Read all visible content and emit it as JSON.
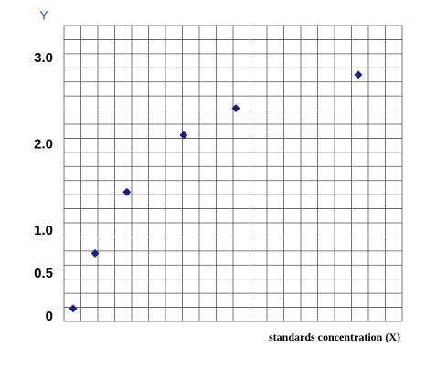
{
  "chart_data": {
    "type": "scatter",
    "title": "Y",
    "x_label": "standards concentration (X)",
    "x": [
      0.27,
      0.92,
      1.86,
      3.54,
      5.08,
      8.7
    ],
    "values": [
      0.1,
      0.74,
      1.45,
      2.11,
      2.42,
      2.81
    ],
    "color": "#1c1c8a",
    "xlim": [
      0,
      10
    ],
    "ylim": [
      -0.05,
      3.38
    ],
    "yticks": [
      0,
      0.5,
      {
        "value": 1,
        "label": "1.0"
      },
      {
        "value": 2,
        "label": "2.0"
      },
      {
        "value": 3,
        "label": "3.0"
      }
    ],
    "grid": true
  }
}
